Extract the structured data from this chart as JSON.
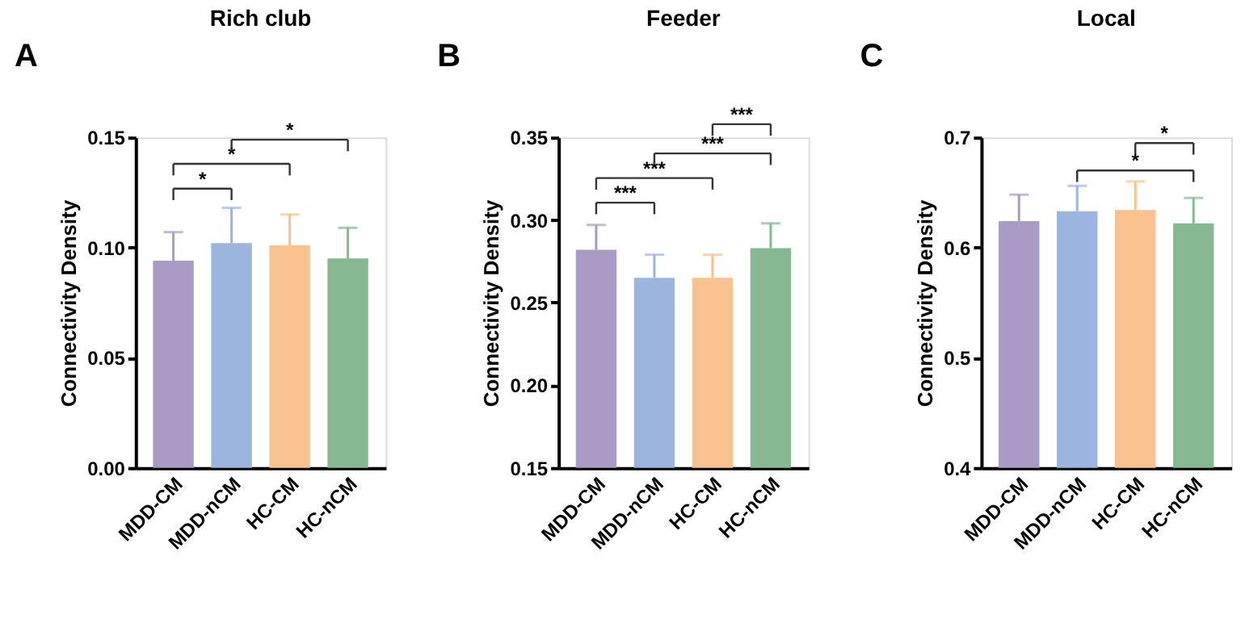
{
  "chart_data": [
    {
      "type": "bar",
      "title": "Rich club",
      "ylabel": "Connectivity Density",
      "categories": [
        "MDD-CM",
        "MDD-nCM",
        "HC-CM",
        "HC-nCM"
      ],
      "values": [
        0.094,
        0.102,
        0.101,
        0.095
      ],
      "colors": [
        "#a99bc6",
        "#9bb5de",
        "#f8c28f",
        "#86b891"
      ],
      "errors": [
        [
          0.094,
          0.107
        ],
        [
          0.102,
          0.118
        ],
        [
          0.101,
          0.115
        ],
        [
          0.095,
          0.109
        ]
      ],
      "ylim": [
        0,
        0.15
      ],
      "yticks": [
        {
          "value": 0,
          "label": "0.00"
        },
        {
          "value": 0.05,
          "label": "0.05"
        },
        {
          "value": 0.1,
          "label": "0.10"
        },
        {
          "value": 0.15,
          "label": "0.15"
        }
      ],
      "grid": false,
      "annotations": [
        "A",
        "*",
        "*",
        "*"
      ]
    },
    {
      "type": "bar",
      "title": "Feeder",
      "ylabel": "Connectivity Density",
      "categories": [
        "MDD-CM",
        "MDD-nCM",
        "HC-CM",
        "HC-nCM"
      ],
      "values": [
        0.282,
        0.265,
        0.265,
        0.283
      ],
      "colors": [
        "#a99bc6",
        "#9bb5de",
        "#f8c28f",
        "#86b891"
      ],
      "errors": [
        [
          0.282,
          0.297
        ],
        [
          0.265,
          0.279
        ],
        [
          0.265,
          0.279
        ],
        [
          0.283,
          0.298
        ]
      ],
      "ylim": [
        0.15,
        0.35
      ],
      "yticks": [
        {
          "value": 0.15,
          "label": "0.15"
        },
        {
          "value": 0.2,
          "label": "0.20"
        },
        {
          "value": 0.25,
          "label": "0.25"
        },
        {
          "value": 0.3,
          "label": "0.30"
        },
        {
          "value": 0.35,
          "label": "0.35"
        }
      ],
      "grid": false,
      "annotations": [
        "B",
        "***",
        "***",
        "***",
        "***"
      ]
    },
    {
      "type": "bar",
      "title": "Local",
      "ylabel": "Connectivity Density",
      "categories": [
        "MDD-CM",
        "MDD-nCM",
        "HC-CM",
        "HC-nCM"
      ],
      "values": [
        0.624,
        0.633,
        0.634,
        0.622
      ],
      "colors": [
        "#a99bc6",
        "#9bb5de",
        "#f8c28f",
        "#86b891"
      ],
      "errors": [
        [
          0.624,
          0.648
        ],
        [
          0.633,
          0.656
        ],
        [
          0.634,
          0.66
        ],
        [
          0.622,
          0.645
        ]
      ],
      "ylim": [
        0.4,
        0.7
      ],
      "yticks": [
        0.4,
        0.5,
        0.6,
        0.7
      ],
      "grid": false,
      "annotations": [
        "C",
        "*",
        "*"
      ]
    }
  ]
}
